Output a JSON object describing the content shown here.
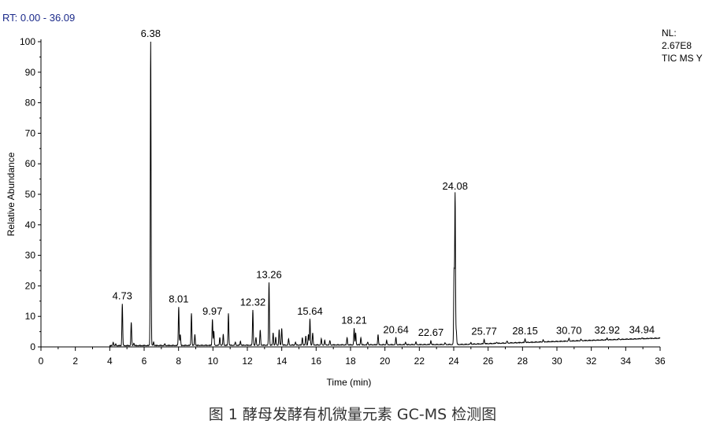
{
  "header": {
    "rt_label": "RT: 0.00 - 36.09",
    "nl_label": "NL:",
    "nl_value": "2.67E8",
    "scan_label": "TIC MS Y"
  },
  "caption": "图 1 酵母发酵有机微量元素 GC-MS 检测图",
  "chart_data": {
    "type": "line",
    "xlabel": "Time (min)",
    "ylabel": "Relative Abundance",
    "xlim": [
      0,
      36
    ],
    "ylim": [
      0,
      100
    ],
    "x_ticks": [
      0,
      2,
      4,
      6,
      8,
      10,
      12,
      14,
      16,
      18,
      20,
      22,
      24,
      26,
      28,
      30,
      32,
      34,
      36
    ],
    "y_ticks": [
      0,
      10,
      20,
      30,
      40,
      50,
      60,
      70,
      80,
      90,
      100
    ],
    "peak_labels": [
      {
        "rt": 4.73,
        "value": 14,
        "label": "4.73"
      },
      {
        "rt": 6.38,
        "value": 100,
        "label": "6.38"
      },
      {
        "rt": 8.01,
        "value": 13,
        "label": "8.01"
      },
      {
        "rt": 9.97,
        "value": 9,
        "label": "9.97"
      },
      {
        "rt": 12.32,
        "value": 12,
        "label": "12.32"
      },
      {
        "rt": 13.26,
        "value": 21,
        "label": "13.26"
      },
      {
        "rt": 15.64,
        "value": 9,
        "label": "15.64"
      },
      {
        "rt": 18.21,
        "value": 6,
        "label": "18.21"
      },
      {
        "rt": 20.64,
        "value": 3,
        "label": "20.64"
      },
      {
        "rt": 22.67,
        "value": 2,
        "label": "22.67"
      },
      {
        "rt": 24.08,
        "value": 50,
        "label": "24.08"
      },
      {
        "rt": 25.77,
        "value": 2.5,
        "label": "25.77"
      },
      {
        "rt": 28.15,
        "value": 2.6,
        "label": "28.15"
      },
      {
        "rt": 30.7,
        "value": 2.7,
        "label": "30.70"
      },
      {
        "rt": 32.92,
        "value": 2.8,
        "label": "32.92"
      },
      {
        "rt": 34.94,
        "value": 2.9,
        "label": "34.94"
      }
    ],
    "minor_peaks": [
      [
        4.2,
        1.5
      ],
      [
        4.35,
        0.8
      ],
      [
        5.25,
        8
      ],
      [
        5.4,
        1.2
      ],
      [
        6.55,
        1.5
      ],
      [
        7.2,
        0.8
      ],
      [
        8.1,
        4
      ],
      [
        8.75,
        11
      ],
      [
        8.95,
        4
      ],
      [
        10.05,
        5
      ],
      [
        10.4,
        3
      ],
      [
        10.6,
        4
      ],
      [
        10.9,
        11
      ],
      [
        11.3,
        1.5
      ],
      [
        11.6,
        1.8
      ],
      [
        12.5,
        3
      ],
      [
        12.75,
        5.5
      ],
      [
        13.5,
        4.5
      ],
      [
        13.65,
        3
      ],
      [
        13.85,
        5.5
      ],
      [
        14.0,
        6
      ],
      [
        14.4,
        2.5
      ],
      [
        14.8,
        1.5
      ],
      [
        15.2,
        3
      ],
      [
        15.4,
        3.5
      ],
      [
        15.55,
        4
      ],
      [
        15.8,
        4.5
      ],
      [
        16.3,
        2.5
      ],
      [
        16.5,
        2
      ],
      [
        16.8,
        2
      ],
      [
        17.8,
        3
      ],
      [
        18.3,
        4.5
      ],
      [
        18.6,
        3
      ],
      [
        19.0,
        1.5
      ],
      [
        19.6,
        4
      ],
      [
        20.1,
        2
      ],
      [
        21.2,
        1.5
      ],
      [
        21.8,
        1.5
      ],
      [
        23.5,
        1.2
      ],
      [
        24.02,
        24.5
      ],
      [
        24.15,
        5
      ],
      [
        25.0,
        1.3
      ],
      [
        26.5,
        1.5
      ],
      [
        27.1,
        1.8
      ],
      [
        29.2,
        2.2
      ],
      [
        31.4,
        2.4
      ],
      [
        33.6,
        2.6
      ],
      [
        35.4,
        2.8
      ]
    ]
  }
}
